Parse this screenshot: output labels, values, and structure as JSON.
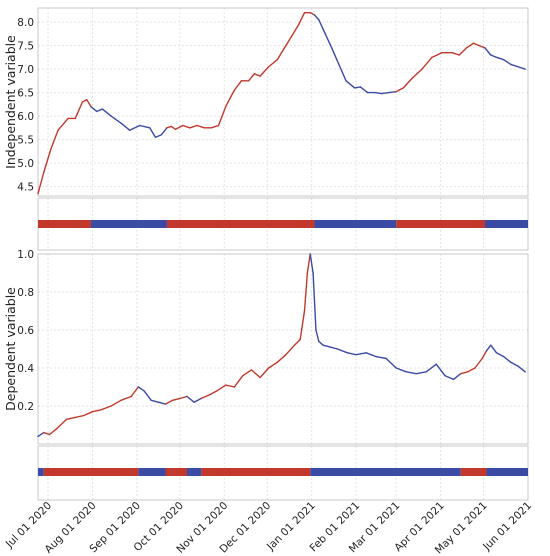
{
  "chart_data": {
    "type": "line",
    "shared_x_axis": {
      "kind": "date",
      "range": [
        "2020-06-24",
        "2021-06-01"
      ],
      "tick_labels": [
        "Jul 01 2020",
        "Aug 01 2020",
        "Sep 01 2020",
        "Oct 01 2020",
        "Nov 01 2020",
        "Dec 01 2020",
        "Jan 01 2021",
        "Feb 01 2021",
        "Mar 01 2021",
        "Apr 01 2021",
        "May 01 2021",
        "Jun 01 2021"
      ],
      "tick_dates": [
        "2020-07-01",
        "2020-08-01",
        "2020-09-01",
        "2020-10-01",
        "2020-11-01",
        "2020-12-01",
        "2021-01-01",
        "2021-02-01",
        "2021-03-01",
        "2021-04-01",
        "2021-05-01",
        "2021-06-01"
      ]
    },
    "colors": {
      "rising": "#c0392b",
      "falling": "#3a4aa5"
    },
    "panels": [
      {
        "name": "independent",
        "ylabel": "Independent variable",
        "ylim": [
          4.3,
          8.3
        ],
        "yticks": [
          4.5,
          5.0,
          5.5,
          6.0,
          6.5,
          7.0,
          7.5,
          8.0
        ],
        "ytick_labels": [
          "4.5",
          "5.0",
          "5.5",
          "6.0",
          "6.5",
          "7.0",
          "7.5",
          "8.0"
        ],
        "grid": true,
        "series": {
          "x": [
            "2020-06-24",
            "2020-06-28",
            "2020-07-03",
            "2020-07-08",
            "2020-07-15",
            "2020-07-20",
            "2020-07-25",
            "2020-07-28",
            "2020-07-31",
            "2020-08-04",
            "2020-08-08",
            "2020-08-14",
            "2020-08-21",
            "2020-08-27",
            "2020-09-03",
            "2020-09-10",
            "2020-09-14",
            "2020-09-18",
            "2020-09-22",
            "2020-09-25",
            "2020-09-28",
            "2020-10-03",
            "2020-10-08",
            "2020-10-13",
            "2020-10-18",
            "2020-10-23",
            "2020-10-28",
            "2020-11-02",
            "2020-11-08",
            "2020-11-13",
            "2020-11-18",
            "2020-11-22",
            "2020-11-26",
            "2020-12-02",
            "2020-12-08",
            "2020-12-13",
            "2020-12-18",
            "2020-12-23",
            "2020-12-27",
            "2020-12-31",
            "2021-01-03",
            "2021-01-06",
            "2021-01-09",
            "2021-01-15",
            "2021-01-20",
            "2021-01-25",
            "2021-01-31",
            "2021-02-04",
            "2021-02-09",
            "2021-02-14",
            "2021-02-19",
            "2021-02-24",
            "2021-03-01",
            "2021-03-06",
            "2021-03-12",
            "2021-03-19",
            "2021-03-26",
            "2021-04-02",
            "2021-04-09",
            "2021-04-14",
            "2021-04-19",
            "2021-04-24",
            "2021-04-28",
            "2021-05-02",
            "2021-05-06",
            "2021-05-10",
            "2021-05-15",
            "2021-05-20",
            "2021-05-25",
            "2021-05-30"
          ],
          "y": [
            4.35,
            4.8,
            5.3,
            5.7,
            5.95,
            5.95,
            6.3,
            6.35,
            6.2,
            6.1,
            6.15,
            6.0,
            5.85,
            5.7,
            5.8,
            5.75,
            5.55,
            5.6,
            5.75,
            5.78,
            5.72,
            5.8,
            5.75,
            5.8,
            5.75,
            5.75,
            5.8,
            6.2,
            6.55,
            6.75,
            6.75,
            6.9,
            6.85,
            7.05,
            7.2,
            7.45,
            7.7,
            7.95,
            8.2,
            8.2,
            8.15,
            8.05,
            7.85,
            7.45,
            7.1,
            6.75,
            6.6,
            6.62,
            6.5,
            6.5,
            6.48,
            6.5,
            6.52,
            6.6,
            6.8,
            7.0,
            7.25,
            7.35,
            7.35,
            7.3,
            7.45,
            7.55,
            7.5,
            7.45,
            7.3,
            7.25,
            7.2,
            7.1,
            7.05,
            7.0
          ]
        },
        "segments": [
          {
            "start": "2020-06-24",
            "end": "2020-07-31",
            "state": "rising"
          },
          {
            "start": "2020-07-31",
            "end": "2020-09-22",
            "state": "falling"
          },
          {
            "start": "2020-09-22",
            "end": "2021-01-03",
            "state": "rising"
          },
          {
            "start": "2021-01-03",
            "end": "2021-03-01",
            "state": "falling"
          },
          {
            "start": "2021-03-01",
            "end": "2021-05-02",
            "state": "rising"
          },
          {
            "start": "2021-05-02",
            "end": "2021-06-01",
            "state": "falling"
          }
        ]
      },
      {
        "name": "dependent",
        "ylabel": "Dependent variable",
        "ylim": [
          0.0,
          1.0
        ],
        "yticks": [
          0.2,
          0.4,
          0.6,
          0.8,
          1.0
        ],
        "ytick_labels": [
          "0.2",
          "0.4",
          "0.6",
          "0.8",
          "1.0"
        ],
        "grid": true,
        "series": {
          "x": [
            "2020-06-24",
            "2020-06-28",
            "2020-07-02",
            "2020-07-07",
            "2020-07-14",
            "2020-07-20",
            "2020-07-26",
            "2020-08-01",
            "2020-08-07",
            "2020-08-14",
            "2020-08-21",
            "2020-08-28",
            "2020-09-02",
            "2020-09-06",
            "2020-09-11",
            "2020-09-16",
            "2020-09-21",
            "2020-09-26",
            "2020-10-01",
            "2020-10-06",
            "2020-10-11",
            "2020-10-16",
            "2020-10-22",
            "2020-10-27",
            "2020-11-02",
            "2020-11-08",
            "2020-11-14",
            "2020-11-20",
            "2020-11-26",
            "2020-12-02",
            "2020-12-08",
            "2020-12-14",
            "2020-12-20",
            "2020-12-24",
            "2020-12-27",
            "2020-12-29",
            "2020-12-31",
            "2021-01-02",
            "2021-01-04",
            "2021-01-06",
            "2021-01-09",
            "2021-01-14",
            "2021-01-19",
            "2021-01-26",
            "2021-02-01",
            "2021-02-08",
            "2021-02-15",
            "2021-02-22",
            "2021-03-01",
            "2021-03-08",
            "2021-03-15",
            "2021-03-22",
            "2021-03-29",
            "2021-04-04",
            "2021-04-10",
            "2021-04-15",
            "2021-04-20",
            "2021-04-25",
            "2021-04-30",
            "2021-05-03",
            "2021-05-06",
            "2021-05-10",
            "2021-05-15",
            "2021-05-20",
            "2021-05-25",
            "2021-05-30"
          ],
          "y": [
            0.04,
            0.06,
            0.05,
            0.08,
            0.13,
            0.14,
            0.15,
            0.17,
            0.18,
            0.2,
            0.23,
            0.25,
            0.3,
            0.28,
            0.23,
            0.22,
            0.21,
            0.23,
            0.24,
            0.25,
            0.22,
            0.24,
            0.26,
            0.28,
            0.31,
            0.3,
            0.36,
            0.39,
            0.35,
            0.4,
            0.43,
            0.47,
            0.52,
            0.55,
            0.7,
            0.9,
            1.0,
            0.9,
            0.6,
            0.54,
            0.52,
            0.51,
            0.5,
            0.48,
            0.47,
            0.48,
            0.46,
            0.45,
            0.4,
            0.38,
            0.37,
            0.38,
            0.42,
            0.36,
            0.34,
            0.37,
            0.38,
            0.4,
            0.45,
            0.49,
            0.52,
            0.48,
            0.46,
            0.43,
            0.41,
            0.38
          ]
        },
        "segments": [
          {
            "start": "2020-06-24",
            "end": "2020-06-28",
            "state": "falling"
          },
          {
            "start": "2020-06-28",
            "end": "2020-09-02",
            "state": "rising"
          },
          {
            "start": "2020-09-02",
            "end": "2020-09-21",
            "state": "falling"
          },
          {
            "start": "2020-09-21",
            "end": "2020-10-06",
            "state": "rising"
          },
          {
            "start": "2020-10-06",
            "end": "2020-10-16",
            "state": "falling"
          },
          {
            "start": "2020-10-16",
            "end": "2020-12-31",
            "state": "rising"
          },
          {
            "start": "2020-12-31",
            "end": "2021-04-15",
            "state": "falling"
          },
          {
            "start": "2021-04-15",
            "end": "2021-05-03",
            "state": "rising"
          },
          {
            "start": "2021-05-03",
            "end": "2021-06-01",
            "state": "falling"
          }
        ]
      }
    ]
  }
}
